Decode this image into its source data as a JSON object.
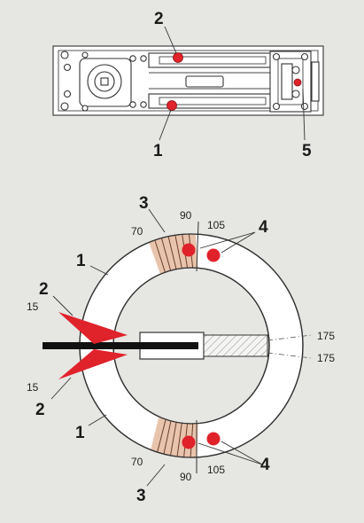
{
  "colors": {
    "background": "#e6e6e3",
    "ring": "#ffffff",
    "outline": "#333333",
    "marker_red": "#e0222b",
    "hatch_band": "#e8c4ad",
    "spindle": "#111111"
  },
  "callouts": {
    "top_2": "2",
    "top_1": "1",
    "top_5": "5",
    "dial_3_top": "3",
    "dial_4_top": "4",
    "dial_1_upper": "1",
    "dial_2_upper": "2",
    "dial_2_lower": "2",
    "dial_1_lower": "1",
    "dial_4_bottom": "4",
    "dial_3_bottom": "3"
  },
  "angles": {
    "top_70": "70",
    "top_90": "90",
    "top_105": "105",
    "left_15_upper": "15",
    "left_15_lower": "15",
    "right_175_upper": "175",
    "right_175_lower": "175",
    "bottom_70": "70",
    "bottom_90": "90",
    "bottom_105": "105"
  },
  "icons": {
    "closer_body": "floor-spring-body-icon",
    "valve": "adjustment-valve-icon",
    "dial": "angle-dial-icon",
    "arrow": "direction-arrow-icon"
  }
}
